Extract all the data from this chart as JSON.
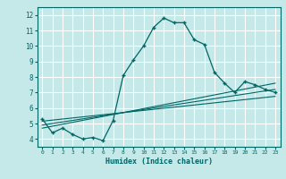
{
  "title": "",
  "xlabel": "Humidex (Indice chaleur)",
  "bg_color": "#c5e8e8",
  "grid_color": "#ffffff",
  "line_color": "#006666",
  "xlim": [
    -0.5,
    23.5
  ],
  "ylim": [
    3.5,
    12.5
  ],
  "xticks": [
    0,
    1,
    2,
    3,
    4,
    5,
    6,
    7,
    8,
    9,
    10,
    11,
    12,
    13,
    14,
    15,
    16,
    17,
    18,
    19,
    20,
    21,
    22,
    23
  ],
  "yticks": [
    4,
    5,
    6,
    7,
    8,
    9,
    10,
    11,
    12
  ],
  "main_curve_x": [
    0,
    1,
    2,
    3,
    4,
    5,
    6,
    7,
    8,
    9,
    10,
    11,
    12,
    13,
    14,
    15,
    16,
    17,
    18,
    19,
    20,
    21,
    22,
    23
  ],
  "main_curve_y": [
    5.3,
    4.4,
    4.7,
    4.3,
    4.0,
    4.1,
    3.9,
    5.2,
    8.1,
    9.1,
    10.0,
    11.2,
    11.8,
    11.5,
    11.5,
    10.4,
    10.1,
    8.3,
    7.6,
    7.0,
    7.7,
    7.5,
    7.2,
    7.0
  ],
  "line2_x": [
    0,
    23
  ],
  "line2_y": [
    4.7,
    7.6
  ],
  "line3_x": [
    0,
    23
  ],
  "line3_y": [
    4.9,
    7.2
  ],
  "line4_x": [
    0,
    23
  ],
  "line4_y": [
    5.15,
    6.75
  ]
}
